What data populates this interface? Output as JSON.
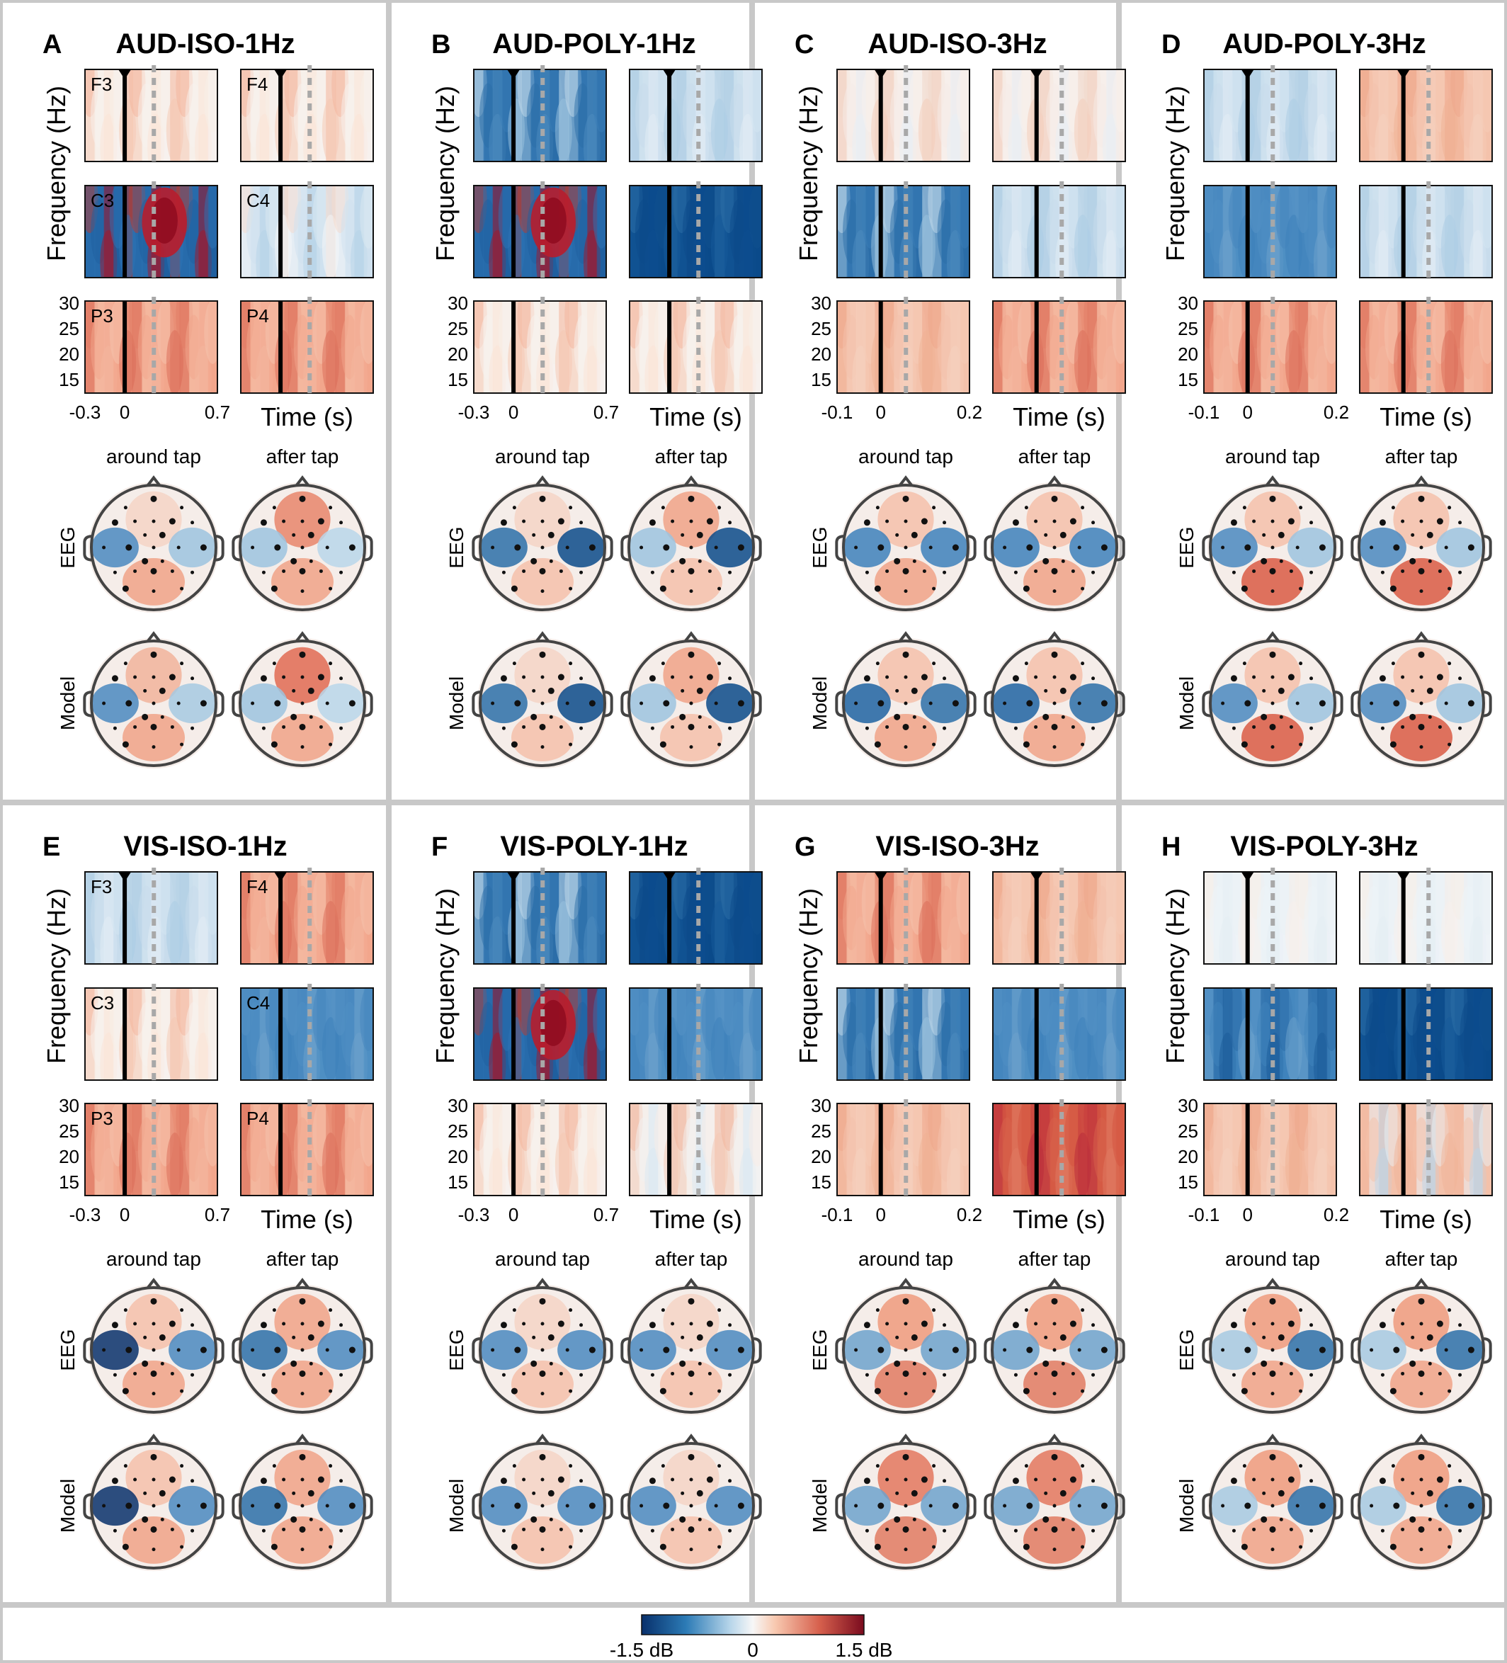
{
  "figure": {
    "rows": [
      {
        "panels": [
          {
            "letter": "A",
            "title": "AUD-ISO-1Hz",
            "xticks": [
              "-0.3",
              "0",
              "0.7"
            ],
            "channel_labels": true,
            "spect": [
              "w_r",
              "w_r",
              "b_rr",
              "b_w",
              "r",
              "r"
            ],
            "topo": [
              "around_aud_iso",
              "after_aud_iso",
              "around_aud_iso_m",
              "after_aud_iso_m"
            ]
          },
          {
            "letter": "B",
            "title": "AUD-POLY-1Hz",
            "xticks": [
              "-0.3",
              "0",
              "0.7"
            ],
            "channel_labels": false,
            "spect": [
              "b",
              "b_l",
              "b_rr",
              "bb",
              "w_r",
              "w_r"
            ],
            "topo": [
              "poly1",
              "poly1b",
              "poly1",
              "poly1b"
            ]
          },
          {
            "letter": "C",
            "title": "AUD-ISO-3Hz",
            "xticks": [
              "-0.1",
              "0",
              "0.2"
            ],
            "channel_labels": false,
            "spect": [
              "w_rb",
              "w_rb",
              "b",
              "b_l",
              "r_l",
              "r"
            ],
            "topo": [
              "iso3",
              "iso3",
              "iso3m",
              "iso3m"
            ]
          },
          {
            "letter": "D",
            "title": "AUD-POLY-3Hz",
            "xticks": [
              "-0.1",
              "0",
              "0.2"
            ],
            "channel_labels": false,
            "spect": [
              "b_l",
              "r_l",
              "b_m",
              "b_l",
              "r",
              "r"
            ],
            "topo": [
              "poly3",
              "poly3",
              "poly3",
              "poly3"
            ]
          }
        ]
      },
      {
        "panels": [
          {
            "letter": "E",
            "title": "VIS-ISO-1Hz",
            "xticks": [
              "-0.3",
              "0",
              "0.7"
            ],
            "channel_labels": true,
            "spect": [
              "b_l",
              "r",
              "b_r",
              "b_m",
              "r",
              "r"
            ],
            "topo": [
              "vis_iso",
              "vis_iso_b",
              "vis_iso",
              "vis_iso_b"
            ]
          },
          {
            "letter": "F",
            "title": "VIS-POLY-1Hz",
            "xticks": [
              "-0.3",
              "0",
              "0.7"
            ],
            "channel_labels": false,
            "spect": [
              "b",
              "bb",
              "b_rr",
              "b_m",
              "w_r",
              "w_rl"
            ],
            "topo": [
              "vis_poly",
              "vis_poly",
              "vis_poly",
              "vis_poly"
            ]
          },
          {
            "letter": "G",
            "title": "VIS-ISO-3Hz",
            "xticks": [
              "-0.1",
              "0",
              "0.2"
            ],
            "channel_labels": false,
            "spect": [
              "r",
              "r_l",
              "b",
              "b_m",
              "r_l",
              "rr"
            ],
            "topo": [
              "vis3",
              "vis3",
              "vis3m",
              "vis3m"
            ]
          },
          {
            "letter": "H",
            "title": "VIS-POLY-3Hz",
            "xticks": [
              "-0.1",
              "0",
              "0.2"
            ],
            "channel_labels": false,
            "spect": [
              "w_l",
              "w_l",
              "bb_b",
              "bb",
              "r_l",
              "r_b"
            ],
            "topo": [
              "vpoly3",
              "vpoly3",
              "vpoly3",
              "vpoly3"
            ]
          }
        ]
      }
    ],
    "ylabel": "Frequency (Hz)",
    "yticks": [
      "30",
      "25",
      "20",
      "15"
    ],
    "xlabel": "Time (s)",
    "channels": [
      "F3",
      "F4",
      "C3",
      "C4",
      "P3",
      "P4"
    ],
    "topo_col_labels": [
      "around tap",
      "after tap"
    ],
    "topo_row_labels": [
      "EEG",
      "Model"
    ],
    "colorbar": {
      "min_label": "-1.5 dB",
      "mid_label": "0",
      "max_label": "1.5 dB"
    },
    "colors": {
      "blue": "#08519c",
      "white": "#f7f7f7",
      "red": "#9e0a21",
      "border": "#c8c8c8"
    }
  }
}
